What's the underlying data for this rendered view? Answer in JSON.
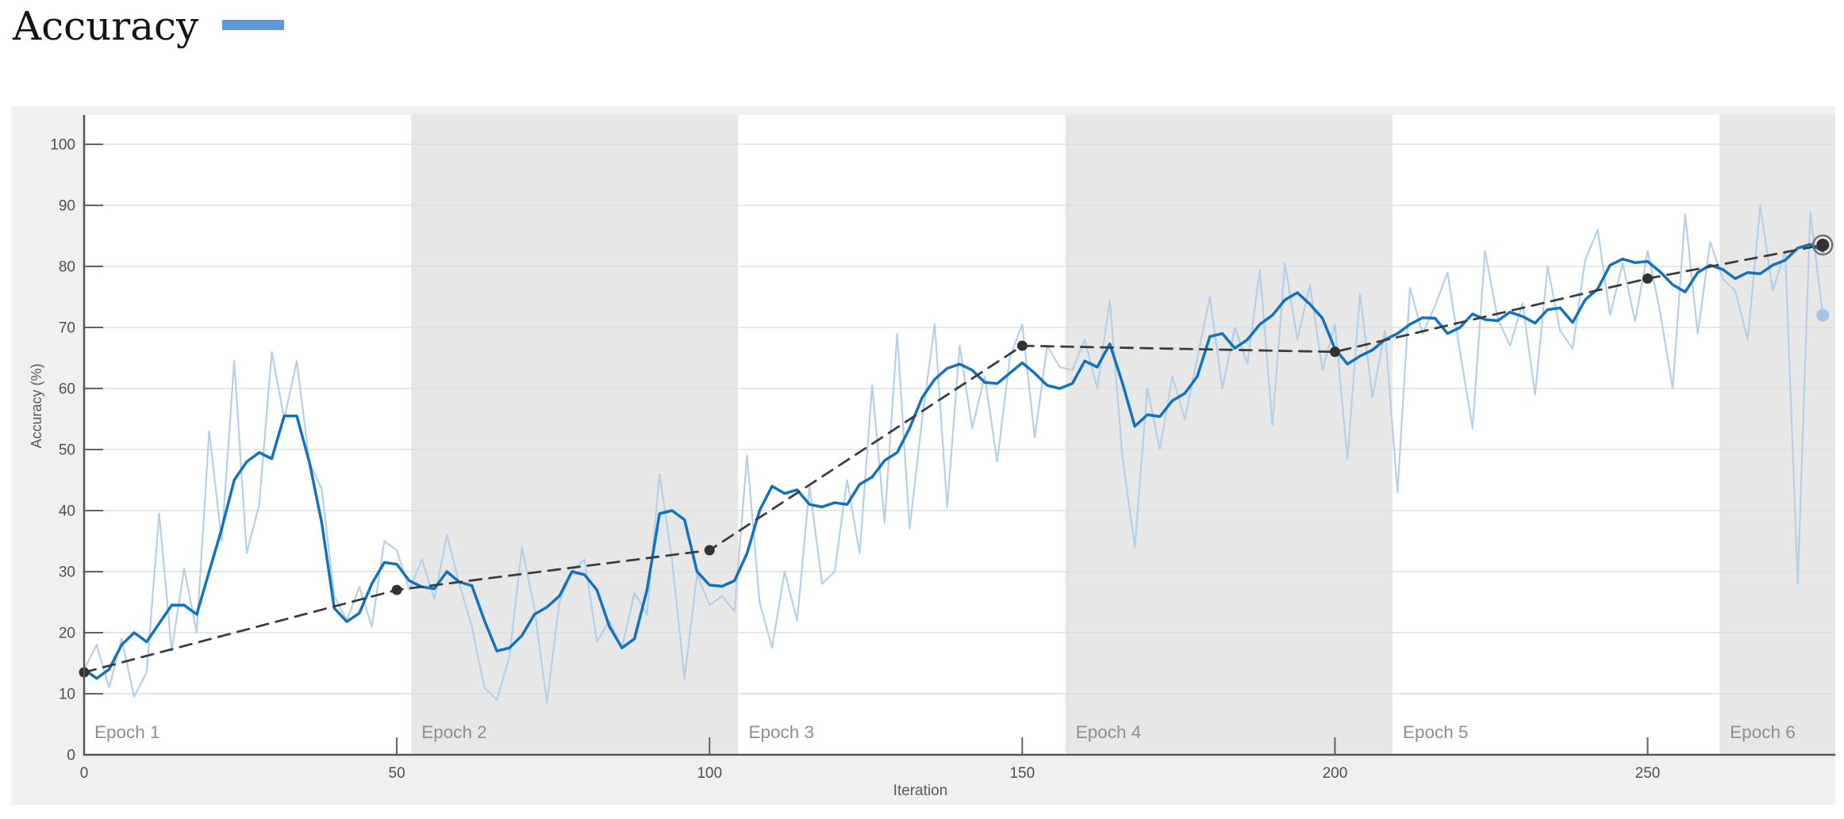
{
  "page": {
    "title": "Accuracy",
    "legend_swatch_color": "#5b9bd5"
  },
  "colors": {
    "panel": "#f0f0f0",
    "plot_bg": "#ffffff",
    "band": "#e7e7e7",
    "grid": "#dedede",
    "axis": "#555555",
    "tick": "#606060",
    "tick_label": "#4f4f4f",
    "epoch_label": "#8e8e8e",
    "axis_label": "#595959",
    "raw": "#b4d0e9",
    "smoothed": "#1173bd",
    "validation": "#3d3d3d",
    "validation_marker": "#333333",
    "final_ring": "#707070",
    "final_training_dot": "#a3c6e8"
  },
  "chart_data": {
    "type": "line",
    "title": "Accuracy",
    "xlabel": "Iteration",
    "ylabel": "Accuracy (%)",
    "xlim": [
      0,
      280
    ],
    "ylim": [
      0,
      104.8
    ],
    "x_ticks": [
      0,
      50,
      100,
      150,
      200,
      250
    ],
    "y_ticks": [
      0,
      10,
      20,
      30,
      40,
      50,
      60,
      70,
      80,
      90,
      100
    ],
    "grid": "horizontal",
    "legend_position": "title-right",
    "epochs": {
      "labels": [
        "Epoch 1",
        "Epoch 2",
        "Epoch 3",
        "Epoch 4",
        "Epoch 5",
        "Epoch 6"
      ],
      "boundaries": [
        0,
        52.3,
        104.6,
        156.9,
        209.2,
        261.5,
        280
      ],
      "shaded": [
        1,
        3,
        5
      ]
    },
    "series": [
      {
        "name": "training-accuracy-raw",
        "style": "solid",
        "color_key": "raw",
        "width": 2.2,
        "x_start": 0,
        "x_step": 2,
        "values": [
          14,
          18,
          11,
          19,
          9.5,
          13.5,
          39.5,
          17,
          30.5,
          20,
          53,
          35,
          64.5,
          33,
          41,
          66,
          55,
          64.5,
          48,
          43.5,
          26,
          22,
          27.5,
          21,
          35,
          33.5,
          27,
          32,
          25.5,
          36,
          28,
          21,
          11,
          9,
          16,
          34,
          24,
          8.5,
          25,
          30,
          32,
          18.5,
          22,
          17.5,
          26.5,
          23,
          46,
          32,
          12.5,
          29.5,
          24.5,
          26,
          23.5,
          49,
          25,
          17.5,
          30,
          22,
          44,
          28,
          30,
          45,
          33,
          60.5,
          38,
          69,
          37,
          55,
          70.5,
          40.5,
          67,
          53.5,
          62,
          48,
          65,
          70.5,
          52,
          67,
          63.5,
          63,
          68,
          60,
          74.5,
          49,
          34,
          60,
          50,
          62,
          55,
          65,
          75,
          60,
          70,
          64,
          79.5,
          54,
          80.5,
          68,
          77,
          63,
          70.5,
          48.5,
          75.5,
          58.5,
          69.5,
          43,
          76.5,
          69,
          73.5,
          79,
          66,
          53.5,
          82.5,
          71.5,
          67,
          74,
          59,
          80,
          69.5,
          66.5,
          81,
          86,
          72,
          80.5,
          71,
          82.5,
          72.5,
          60,
          88.5,
          69,
          84,
          78,
          76,
          68,
          90,
          76,
          82.5,
          28,
          89,
          72
        ]
      },
      {
        "name": "training-accuracy-smoothed",
        "style": "solid",
        "color_key": "smoothed",
        "width": 3.5,
        "x_start": 0,
        "x_step": 2,
        "values": [
          14,
          12.5,
          14,
          18,
          20,
          18.5,
          21.5,
          24.5,
          24.5,
          23,
          30,
          37,
          45,
          48,
          49.5,
          48.5,
          55.5,
          55.5,
          48,
          38,
          24,
          21.8,
          23.2,
          28,
          31.5,
          31.2,
          28.5,
          27.5,
          27.2,
          30,
          28.3,
          27.7,
          22,
          17,
          17.5,
          19.5,
          23,
          24.2,
          26,
          30,
          29.5,
          27,
          21,
          17.5,
          19,
          27,
          39.5,
          40,
          38.5,
          30,
          27.8,
          27.6,
          28.5,
          33,
          40,
          44,
          42.8,
          43.4,
          41,
          40.6,
          41.3,
          41,
          44.3,
          45.5,
          48.2,
          49.5,
          53.5,
          58.5,
          61.5,
          63.3,
          64,
          63,
          61,
          60.8,
          62.5,
          64.2,
          62.5,
          60.5,
          60,
          60.8,
          64.5,
          63.5,
          67.3,
          61,
          53.8,
          55.7,
          55.4,
          58,
          59.2,
          62,
          68.5,
          69,
          66.6,
          68,
          70.5,
          72,
          74.5,
          75.7,
          73.8,
          71.5,
          66.5,
          64,
          65.3,
          66.3,
          68,
          69,
          70.5,
          71.6,
          71.5,
          69,
          70,
          72.2,
          71.3,
          71.1,
          72.5,
          71.8,
          70.7,
          72.9,
          73.2,
          70.8,
          74.5,
          76.3,
          80.2,
          81.2,
          80.6,
          80.8,
          79.1,
          77,
          75.8,
          79,
          80.2,
          79.5,
          78,
          79,
          78.8,
          80.2,
          81,
          83,
          83.6,
          82.5
        ]
      },
      {
        "name": "validation-accuracy",
        "style": "dashed",
        "color_key": "validation",
        "width": 2.8,
        "dash": [
          15,
          10
        ],
        "markers": true,
        "marker_radius": 6.5,
        "x": [
          0,
          50,
          100,
          150,
          200,
          250,
          278
        ],
        "values": [
          13.5,
          27,
          33.5,
          67,
          66,
          78,
          83.5
        ]
      }
    ],
    "final_validation_point": {
      "x": 278,
      "value": 83.5,
      "ring_radius": 12,
      "dot_radius": 8
    },
    "final_training_point": {
      "x": 278,
      "value": 72,
      "dot_radius": 8
    }
  }
}
